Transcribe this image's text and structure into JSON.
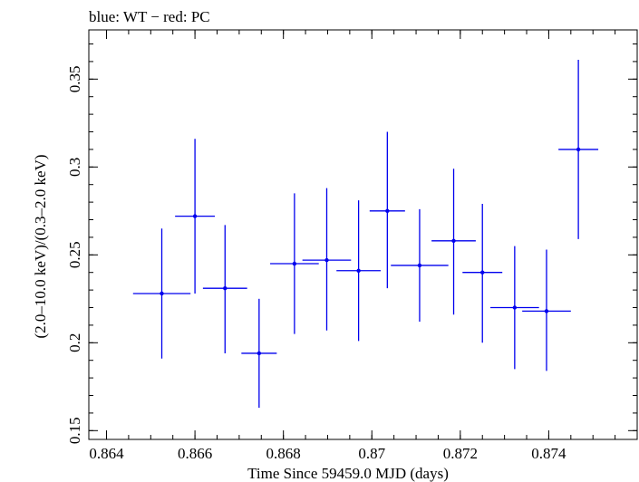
{
  "chart_data": {
    "type": "scatter",
    "title": "blue: WT − red: PC",
    "xlabel": "Time Since 59459.0 MJD (days)",
    "ylabel": "(2.0–10.0 keV)/(0.3–2.0 keV)",
    "xlim": [
      0.8636,
      0.876
    ],
    "ylim": [
      0.145,
      0.378
    ],
    "x_ticks": [
      {
        "value": 0.864,
        "label": "0.864"
      },
      {
        "value": 0.866,
        "label": "0.866"
      },
      {
        "value": 0.868,
        "label": "0.868"
      },
      {
        "value": 0.87,
        "label": "0.87"
      },
      {
        "value": 0.872,
        "label": "0.872"
      },
      {
        "value": 0.874,
        "label": "0.874"
      }
    ],
    "y_ticks": [
      {
        "value": 0.15,
        "label": "0.15"
      },
      {
        "value": 0.2,
        "label": "0.2"
      },
      {
        "value": 0.25,
        "label": "0.25"
      },
      {
        "value": 0.3,
        "label": "0.3"
      },
      {
        "value": 0.35,
        "label": "0.35"
      }
    ],
    "x_minor_step": 0.0005,
    "y_minor_step": 0.01,
    "grid": false,
    "series": [
      {
        "color": "#0000ee",
        "points": [
          {
            "x": 0.86525,
            "xerr": 0.00065,
            "y": 0.228,
            "ylo": 0.191,
            "yhi": 0.265
          },
          {
            "x": 0.866,
            "xerr": 0.00045,
            "y": 0.272,
            "ylo": 0.228,
            "yhi": 0.316
          },
          {
            "x": 0.86668,
            "xerr": 0.0005,
            "y": 0.231,
            "ylo": 0.194,
            "yhi": 0.267
          },
          {
            "x": 0.86745,
            "xerr": 0.0004,
            "y": 0.194,
            "ylo": 0.163,
            "yhi": 0.225
          },
          {
            "x": 0.86825,
            "xerr": 0.00055,
            "y": 0.245,
            "ylo": 0.205,
            "yhi": 0.285
          },
          {
            "x": 0.86898,
            "xerr": 0.00055,
            "y": 0.247,
            "ylo": 0.207,
            "yhi": 0.288
          },
          {
            "x": 0.8697,
            "xerr": 0.0005,
            "y": 0.241,
            "ylo": 0.201,
            "yhi": 0.281
          },
          {
            "x": 0.87035,
            "xerr": 0.0004,
            "y": 0.275,
            "ylo": 0.231,
            "yhi": 0.32
          },
          {
            "x": 0.87108,
            "xerr": 0.00065,
            "y": 0.244,
            "ylo": 0.212,
            "yhi": 0.276
          },
          {
            "x": 0.87185,
            "xerr": 0.0005,
            "y": 0.258,
            "ylo": 0.216,
            "yhi": 0.299
          },
          {
            "x": 0.8725,
            "xerr": 0.00045,
            "y": 0.24,
            "ylo": 0.2,
            "yhi": 0.279
          },
          {
            "x": 0.87323,
            "xerr": 0.00055,
            "y": 0.22,
            "ylo": 0.185,
            "yhi": 0.255
          },
          {
            "x": 0.87395,
            "xerr": 0.00055,
            "y": 0.218,
            "ylo": 0.184,
            "yhi": 0.253
          },
          {
            "x": 0.87467,
            "xerr": 0.00045,
            "y": 0.31,
            "ylo": 0.259,
            "yhi": 0.361
          }
        ]
      }
    ]
  }
}
